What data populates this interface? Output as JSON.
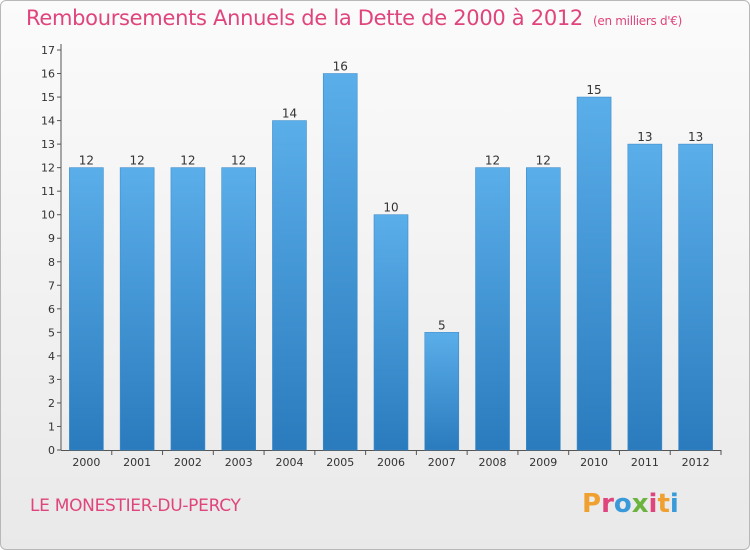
{
  "header": {
    "title": "Remboursements Annuels de la Dette de 2000 à 2012",
    "unit": "(en milliers d'€)"
  },
  "footer": {
    "commune": "LE MONESTIER-DU-PERCY",
    "logo_letters": [
      "P",
      "r",
      "o",
      "x",
      "i",
      "t",
      "i"
    ],
    "logo_colors": [
      "#f0a030",
      "#e0447c",
      "#3a9ad9",
      "#6cb33f",
      "#e0447c",
      "#f0a030",
      "#3a9ad9"
    ]
  },
  "colors": {
    "bar_top": "#5aaee9",
    "bar_bottom": "#2a7bbd",
    "axis": "#555555",
    "label": "#333333"
  },
  "chart_data": {
    "type": "bar",
    "categories": [
      "2000",
      "2001",
      "2002",
      "2003",
      "2004",
      "2005",
      "2006",
      "2007",
      "2008",
      "2009",
      "2010",
      "2011",
      "2012"
    ],
    "values": [
      12,
      12,
      12,
      12,
      14,
      16,
      10,
      5,
      12,
      12,
      15,
      13,
      13
    ],
    "data_labels": [
      "12",
      "12",
      "12",
      "12",
      "14",
      "16",
      "10",
      "5",
      "12",
      "12",
      "15",
      "13",
      "13"
    ],
    "yticks": [
      "0",
      "1",
      "2",
      "3",
      "4",
      "5",
      "6",
      "7",
      "8",
      "9",
      "10",
      "11",
      "12",
      "13",
      "14",
      "15",
      "16",
      "17"
    ],
    "ylim": [
      0,
      17
    ],
    "grid": false
  }
}
